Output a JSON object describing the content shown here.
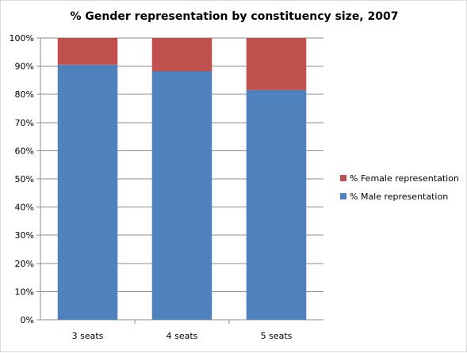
{
  "chart_data": {
    "type": "bar",
    "stacked": true,
    "percent_stacked": true,
    "title": "% Gender representation by constituency size, 2007",
    "xlabel": "",
    "ylabel": "",
    "categories": [
      "3 seats",
      "4 seats",
      "5 seats"
    ],
    "series": [
      {
        "name": "% Male representation",
        "values": [
          90.5,
          88.2,
          81.5
        ],
        "color": "#4f81bd"
      },
      {
        "name": "% Female representation",
        "values": [
          9.5,
          11.8,
          18.5
        ],
        "color": "#c0504d"
      }
    ],
    "ylim": [
      0,
      100
    ],
    "y_ticks": [
      "0%",
      "10%",
      "20%",
      "30%",
      "40%",
      "50%",
      "60%",
      "70%",
      "80%",
      "90%",
      "100%"
    ],
    "grid": true,
    "legend_position": "right",
    "legend_order": [
      "% Female representation",
      "% Male representation"
    ]
  }
}
